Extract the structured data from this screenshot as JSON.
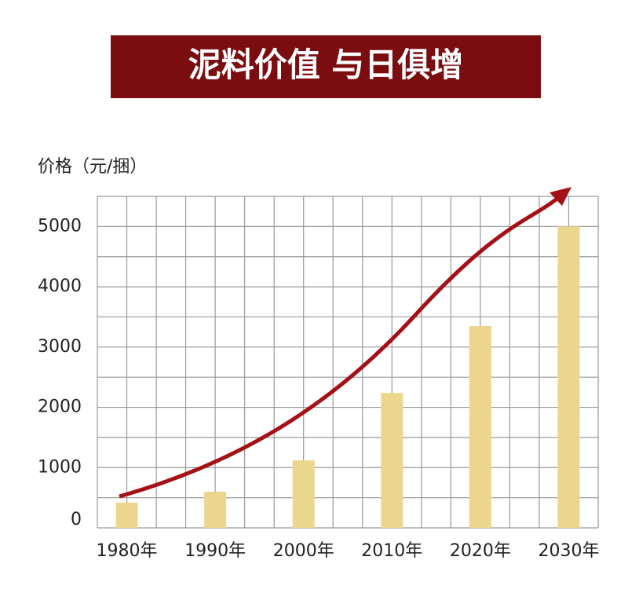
{
  "chart_data": {
    "type": "bar",
    "title": "泥料价值 与日俱增",
    "y_label": "价格（元/捆）",
    "categories": [
      "1980年",
      "1990年",
      "2000年",
      "2010年",
      "2020年",
      "2030年"
    ],
    "values": [
      420,
      600,
      1120,
      2240,
      3350,
      5000
    ],
    "color": "#ecd68e",
    "ylim": [
      0,
      5500
    ],
    "yticks": [
      0,
      1000,
      2000,
      3000,
      4000,
      5000
    ],
    "grid": true,
    "grid_yticks": [
      0,
      500,
      1000,
      1500,
      2000,
      2500,
      3000,
      3500,
      4000,
      4500,
      5000,
      5500
    ]
  }
}
